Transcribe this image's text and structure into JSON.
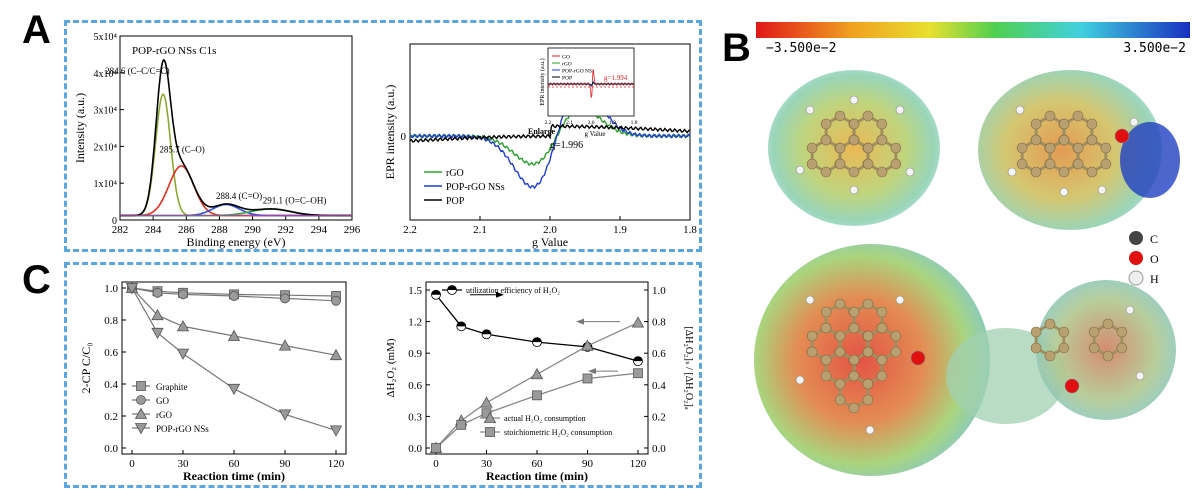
{
  "panels": {
    "A": "A",
    "B": "B",
    "C": "C"
  },
  "chart_data": [
    {
      "id": "xps",
      "type": "line",
      "title": "POP-rGO NSs  C1s",
      "xlabel": "Binding energy (eV)",
      "ylabel": "Intensity (a.u.)",
      "xlim": [
        282,
        296
      ],
      "ylim": [
        0,
        50000
      ],
      "xticks": [
        "282",
        "284",
        "286",
        "288",
        "290",
        "292",
        "294",
        "296"
      ],
      "yticks": [
        "0",
        "1x10⁴",
        "2x10⁴",
        "3x10⁴",
        "4x10⁴",
        "5x10⁴"
      ],
      "peaks": [
        {
          "center": 284.6,
          "height": 33000,
          "width": 0.45,
          "color": "#8aa832"
        },
        {
          "center": 285.7,
          "height": 13500,
          "width": 0.75,
          "color": "#e03020"
        },
        {
          "center": 288.4,
          "height": 3000,
          "width": 0.8,
          "color": "#3050d0"
        },
        {
          "center": 291.1,
          "height": 1800,
          "width": 1.2,
          "color": "#3aa050"
        }
      ],
      "annotations": [
        "284.6 (C–C/C=C)",
        "285.7 (C–O)",
        "288.4 (C=O)",
        "291.1 (O=C–OH)"
      ]
    },
    {
      "id": "epr",
      "type": "line",
      "xlabel": "g Value",
      "ylabel": "EPR intensity (a.u.)",
      "xlim": [
        2.2,
        1.8
      ],
      "xticks": [
        "2.2",
        "2.1",
        "2.0",
        "1.9",
        "1.8"
      ],
      "ytick": "0",
      "g_label": "g=1.996",
      "enlarge_label": "Enlarge",
      "series": [
        {
          "name": "rGO",
          "color": "#2ea02e",
          "amp": 0.55
        },
        {
          "name": "POP-rGO NSs",
          "color": "#1f3ed0",
          "amp": 1.0
        },
        {
          "name": "POP",
          "color": "#000000",
          "amp": 0.12
        }
      ],
      "inset": {
        "xlabel": "g Value",
        "ylabel": "EPR intensity (a.u.)",
        "legend": [
          "GO",
          "rGO",
          "POP-rGO NSs",
          "POP"
        ],
        "legend_colors": [
          "#e02020",
          "#2ea02e",
          "#1f3ed0",
          "#000000"
        ],
        "g_label": "g=1.994",
        "xticks": [
          "2.2",
          "2.1",
          "2.0",
          "1.9",
          "1.8"
        ]
      }
    },
    {
      "id": "degradation",
      "type": "line",
      "xlabel": "Reaction time (min)",
      "ylabel": "2-CP C/C₀",
      "xlim": [
        0,
        120
      ],
      "ylim": [
        0,
        1.0
      ],
      "xticks": [
        "0",
        "30",
        "60",
        "90",
        "120"
      ],
      "yticks": [
        "0.0",
        "0.2",
        "0.4",
        "0.6",
        "0.8",
        "1.0"
      ],
      "x": [
        0,
        15,
        30,
        60,
        90,
        120
      ],
      "series": [
        {
          "name": "Graphite",
          "marker": "square",
          "values": [
            1.0,
            0.98,
            0.97,
            0.96,
            0.955,
            0.95
          ]
        },
        {
          "name": "GO",
          "marker": "circle",
          "values": [
            1.0,
            0.97,
            0.96,
            0.95,
            0.935,
            0.92
          ]
        },
        {
          "name": "rGO",
          "marker": "triangle",
          "values": [
            1.0,
            0.83,
            0.76,
            0.7,
            0.64,
            0.58
          ]
        },
        {
          "name": "POP-rGO NSs",
          "marker": "triangle-down",
          "values": [
            1.0,
            0.72,
            0.59,
            0.37,
            0.21,
            0.11
          ]
        }
      ]
    },
    {
      "id": "h2o2",
      "type": "line",
      "xlabel": "Reaction time (min)",
      "ylabel": "ΔH₂O₂ (mM)",
      "ylabel_right": "[ΔH₂O₂]ₛ / [ΔH₂O₂]ₐ",
      "xlim": [
        0,
        120
      ],
      "ylim": [
        0,
        1.5
      ],
      "ylim_right": [
        0,
        1.0
      ],
      "xticks": [
        "0",
        "30",
        "60",
        "90",
        "120"
      ],
      "yticks": [
        "0.0",
        "0.3",
        "0.6",
        "0.9",
        "1.2",
        "1.5"
      ],
      "yticks_right": [
        "0.0",
        "0.2",
        "0.4",
        "0.6",
        "0.8",
        "1.0"
      ],
      "x": [
        0,
        15,
        30,
        60,
        90,
        120
      ],
      "series": [
        {
          "name": "utilization efficiency of H₂O₂",
          "marker": "circle-half",
          "axis": "right",
          "values": [
            0.97,
            0.77,
            0.72,
            0.67,
            0.64,
            0.55
          ]
        },
        {
          "name": "actual H₂O₂ consumption",
          "marker": "triangle",
          "axis": "left",
          "values": [
            0.0,
            0.26,
            0.43,
            0.7,
            0.97,
            1.19
          ]
        },
        {
          "name": "stoichiometric H₂O₂ consumption",
          "marker": "square",
          "axis": "left",
          "values": [
            0.0,
            0.22,
            0.33,
            0.5,
            0.66,
            0.71
          ]
        }
      ]
    }
  ],
  "colorbar": {
    "min_label": "−3.500e−2",
    "max_label": "3.500e−2"
  },
  "atom_legend": [
    {
      "symbol": "C",
      "color": "#444444"
    },
    {
      "symbol": "O",
      "color": "#e01010"
    },
    {
      "symbol": "H",
      "color": "#e8e8e8"
    }
  ]
}
